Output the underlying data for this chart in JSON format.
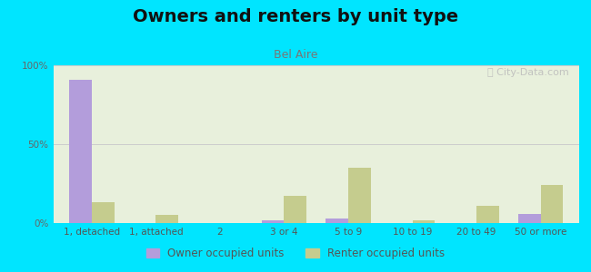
{
  "title": "Owners and renters by unit type",
  "subtitle": "Bel Aire",
  "categories": [
    "1, detached",
    "1, attached",
    "2",
    "3 or 4",
    "5 to 9",
    "10 to 19",
    "20 to 49",
    "50 or more"
  ],
  "owner_values": [
    91,
    0,
    0,
    2,
    3,
    0,
    0,
    6
  ],
  "renter_values": [
    13,
    5,
    0,
    17,
    35,
    2,
    11,
    24
  ],
  "owner_color": "#b39ddb",
  "renter_color": "#c5cc8e",
  "background_outer": "#00e5ff",
  "background_plot": "#e8f0dc",
  "ylim": [
    0,
    100
  ],
  "yticks": [
    0,
    50,
    100
  ],
  "ytick_labels": [
    "0%",
    "50%",
    "100%"
  ],
  "bar_width": 0.35,
  "legend_owner": "Owner occupied units",
  "legend_renter": "Renter occupied units",
  "title_fontsize": 14,
  "subtitle_fontsize": 9,
  "axis_label_fontsize": 7.5,
  "legend_fontsize": 8.5
}
